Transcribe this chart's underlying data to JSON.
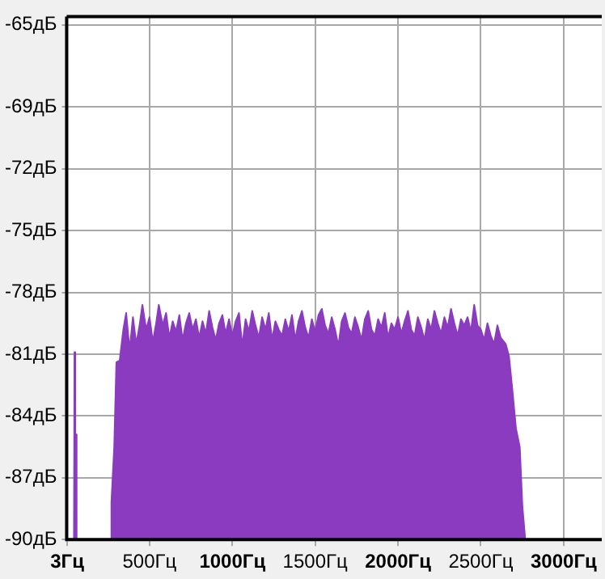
{
  "chart_data": {
    "type": "area",
    "x": [
      44,
      47,
      50,
      54,
      57,
      60,
      265,
      270,
      287,
      300,
      320,
      342,
      359,
      380,
      400,
      420,
      440,
      457,
      480,
      500,
      520,
      540,
      556,
      580,
      600,
      620,
      640,
      660,
      680,
      700,
      720,
      740,
      760,
      780,
      800,
      820,
      840,
      860,
      880,
      900,
      920,
      940,
      960,
      980,
      1000,
      1020,
      1040,
      1060,
      1080,
      1100,
      1120,
      1140,
      1160,
      1180,
      1200,
      1220,
      1240,
      1260,
      1280,
      1300,
      1320,
      1340,
      1360,
      1380,
      1400,
      1420,
      1440,
      1460,
      1480,
      1500,
      1520,
      1540,
      1560,
      1580,
      1600,
      1620,
      1640,
      1660,
      1680,
      1700,
      1720,
      1740,
      1760,
      1780,
      1800,
      1820,
      1840,
      1860,
      1880,
      1900,
      1920,
      1940,
      1960,
      1980,
      2000,
      2020,
      2040,
      2060,
      2080,
      2100,
      2120,
      2140,
      2160,
      2180,
      2200,
      2220,
      2240,
      2260,
      2280,
      2300,
      2320,
      2340,
      2360,
      2380,
      2400,
      2420,
      2440,
      2460,
      2480,
      2500,
      2520,
      2540,
      2560,
      2580,
      2600,
      2620,
      2650,
      2670,
      2690,
      2712,
      2735,
      2751,
      2768
    ],
    "series": [
      {
        "color": "#8a3bbf",
        "values": [
          -90,
          -80.9,
          -90,
          -90,
          -84.9,
          -90,
          -90,
          -88.2,
          -85.5,
          -81.4,
          -81.3,
          -79.8,
          -79.0,
          -80.8,
          -79.2,
          -80.5,
          -79.6,
          -78.6,
          -79.8,
          -79.2,
          -80.4,
          -79.5,
          -78.6,
          -79.6,
          -79.0,
          -80.2,
          -79.4,
          -79.9,
          -79.1,
          -80.3,
          -79.5,
          -79.0,
          -79.8,
          -79.3,
          -80.2,
          -79.4,
          -80.0,
          -78.9,
          -79.7,
          -80.3,
          -79.5,
          -79.1,
          -80.0,
          -79.3,
          -80.1,
          -79.4,
          -79.0,
          -80.6,
          -79.3,
          -79.9,
          -78.9,
          -79.6,
          -80.2,
          -79.2,
          -79.8,
          -79.0,
          -80.3,
          -79.4,
          -79.8,
          -80.1,
          -79.3,
          -79.9,
          -79.1,
          -80.3,
          -79.4,
          -78.9,
          -79.7,
          -80.2,
          -79.3,
          -79.9,
          -79.1,
          -78.8,
          -79.6,
          -80.0,
          -79.2,
          -79.8,
          -80.6,
          -79.4,
          -79.0,
          -79.7,
          -80.0,
          -79.2,
          -79.7,
          -80.3,
          -79.3,
          -78.9,
          -79.8,
          -80.1,
          -79.3,
          -79.7,
          -79.0,
          -80.2,
          -79.5,
          -79.8,
          -79.2,
          -80.0,
          -79.4,
          -78.9,
          -79.8,
          -80.1,
          -79.2,
          -79.7,
          -80.3,
          -79.3,
          -79.8,
          -78.9,
          -79.5,
          -80.0,
          -79.2,
          -79.7,
          -78.8,
          -79.5,
          -80.1,
          -79.3,
          -79.6,
          -79.2,
          -79.9,
          -78.6,
          -79.6,
          -79.8,
          -80.3,
          -79.5,
          -80.1,
          -80.5,
          -79.6,
          -80.2,
          -80.5,
          -81.1,
          -82.7,
          -84.6,
          -85.5,
          -88.4,
          -90
        ]
      }
    ],
    "xlim": [
      0,
      3230
    ],
    "ylim": [
      -90,
      -64.6
    ],
    "xticks": [
      {
        "value": 3,
        "label": "3Гц"
      },
      {
        "value": 500,
        "label": "500Гц"
      },
      {
        "value": 1000,
        "label": "1000Гц"
      },
      {
        "value": 1500,
        "label": "1500Гц"
      },
      {
        "value": 2000,
        "label": "2000Гц"
      },
      {
        "value": 2500,
        "label": "2500Гц"
      },
      {
        "value": 3000,
        "label": "3000Гц"
      }
    ],
    "yticks": [
      {
        "value": -65,
        "label": "-65дБ"
      },
      {
        "value": -69,
        "label": "-69дБ"
      },
      {
        "value": -72,
        "label": "-72дБ"
      },
      {
        "value": -75,
        "label": "-75дБ"
      },
      {
        "value": -78,
        "label": "-78дБ"
      },
      {
        "value": -81,
        "label": "-81дБ"
      },
      {
        "value": -84,
        "label": "-84дБ"
      },
      {
        "value": -87,
        "label": "-87дБ"
      },
      {
        "value": -90,
        "label": "-90дБ"
      }
    ],
    "grid": true,
    "legend": false,
    "marker": "none"
  }
}
